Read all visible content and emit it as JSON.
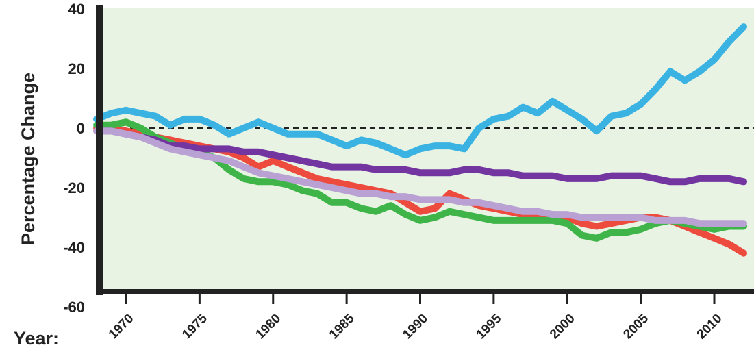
{
  "chart_data": {
    "type": "line",
    "xlabel": "Year:",
    "ylabel": "Percentage Change",
    "xlim": [
      1967.6,
      2012.6
    ],
    "ylim": [
      -60,
      40
    ],
    "y_ticks": [
      40,
      20,
      0,
      -20,
      -40,
      -60
    ],
    "x_ticks": [
      1970,
      1975,
      1980,
      1985,
      1990,
      1995,
      2000,
      2005,
      2010
    ],
    "reference_line": 0,
    "background_color": "#e8f3e4",
    "x": [
      1968,
      1969,
      1970,
      1971,
      1972,
      1973,
      1974,
      1975,
      1976,
      1977,
      1978,
      1979,
      1980,
      1981,
      1982,
      1983,
      1984,
      1985,
      1986,
      1987,
      1988,
      1989,
      1990,
      1991,
      1992,
      1993,
      1994,
      1995,
      1996,
      1997,
      1998,
      1999,
      2000,
      2001,
      2002,
      2003,
      2004,
      2005,
      2006,
      2007,
      2008,
      2009,
      2010,
      2011,
      2012
    ],
    "series": [
      {
        "color": "#3bb3e2",
        "values": [
          3,
          5,
          6,
          5,
          4,
          1,
          3,
          3,
          1,
          -2,
          0,
          2,
          0,
          -2,
          -2,
          -2,
          -4,
          -6,
          -4,
          -5,
          -7,
          -9,
          -7,
          -6,
          -6,
          -7,
          0,
          3,
          4,
          7,
          5,
          9,
          6,
          3,
          -1,
          4,
          5,
          8,
          13,
          19,
          16,
          19,
          23,
          29,
          34
        ]
      },
      {
        "color": "#ed4b3e",
        "values": [
          0,
          0,
          -1,
          -2,
          -3,
          -4,
          -5,
          -6,
          -7,
          -8,
          -10,
          -13,
          -11,
          -13,
          -15,
          -17,
          -18,
          -19,
          -20,
          -21,
          -22,
          -25,
          -28,
          -27,
          -22,
          -24,
          -26,
          -27,
          -28,
          -29,
          -29,
          -29,
          -30,
          -32,
          -33,
          -32,
          -31,
          -30,
          -30,
          -31,
          -33,
          -35,
          -37,
          -39,
          -42
        ]
      },
      {
        "color": "#3fb549",
        "values": [
          1,
          1,
          2,
          0,
          -3,
          -5,
          -7,
          -8,
          -10,
          -14,
          -17,
          -18,
          -18,
          -19,
          -21,
          -22,
          -25,
          -25,
          -27,
          -28,
          -26,
          -29,
          -31,
          -30,
          -28,
          -29,
          -30,
          -31,
          -31,
          -31,
          -31,
          -31,
          -32,
          -36,
          -37,
          -35,
          -35,
          -34,
          -32,
          -31,
          -32,
          -33,
          -34,
          -33,
          -33
        ]
      },
      {
        "color": "#7336a1",
        "values": [
          -1,
          -1,
          -2,
          -3,
          -4,
          -6,
          -6,
          -7,
          -7,
          -7,
          -8,
          -8,
          -9,
          -10,
          -11,
          -12,
          -13,
          -13,
          -13,
          -14,
          -14,
          -14,
          -15,
          -15,
          -15,
          -14,
          -14,
          -15,
          -15,
          -16,
          -16,
          -16,
          -17,
          -17,
          -17,
          -16,
          -16,
          -16,
          -17,
          -18,
          -18,
          -17,
          -17,
          -17,
          -18
        ]
      },
      {
        "color": "#b9a2d3",
        "values": [
          -1,
          -1,
          -2,
          -3,
          -5,
          -7,
          -8,
          -9,
          -10,
          -11,
          -13,
          -15,
          -16,
          -17,
          -18,
          -19,
          -20,
          -21,
          -22,
          -22,
          -23,
          -23,
          -24,
          -24,
          -24,
          -25,
          -25,
          -26,
          -27,
          -28,
          -28,
          -29,
          -29,
          -30,
          -30,
          -30,
          -30,
          -30,
          -31,
          -31,
          -31,
          -32,
          -32,
          -32,
          -32
        ]
      }
    ]
  }
}
